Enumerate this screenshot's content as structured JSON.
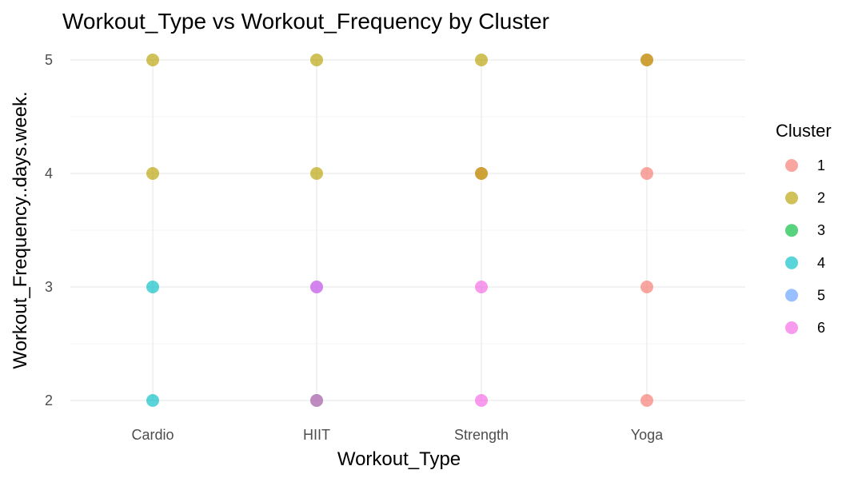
{
  "chart_data": {
    "type": "scatter",
    "title": "Workout_Type vs Workout_Frequency by Cluster",
    "xlabel": "Workout_Type",
    "ylabel": "Workout_Frequency..days.week.",
    "categories": [
      "Cardio",
      "HIIT",
      "Strength",
      "Yoga"
    ],
    "ylim": [
      2,
      5
    ],
    "yticks": [
      "2",
      "3",
      "4",
      "5"
    ],
    "grid": true,
    "legend": {
      "title": "Cluster",
      "position": "right"
    },
    "series": [
      {
        "name": "1",
        "color": "#F8766D",
        "points": [
          {
            "x": "Strength",
            "y": 4
          },
          {
            "x": "Yoga",
            "y": 5
          },
          {
            "x": "Yoga",
            "y": 4
          },
          {
            "x": "Yoga",
            "y": 3
          },
          {
            "x": "Yoga",
            "y": 2
          }
        ]
      },
      {
        "name": "2",
        "color": "#B79F00",
        "points": [
          {
            "x": "Cardio",
            "y": 5
          },
          {
            "x": "Cardio",
            "y": 4
          },
          {
            "x": "HIIT",
            "y": 5
          },
          {
            "x": "HIIT",
            "y": 4
          },
          {
            "x": "Strength",
            "y": 5
          },
          {
            "x": "Strength",
            "y": 4
          },
          {
            "x": "Yoga",
            "y": 5
          }
        ]
      },
      {
        "name": "3",
        "color": "#00BA38",
        "points": [
          {
            "x": "HIIT",
            "y": 2
          }
        ]
      },
      {
        "name": "4",
        "color": "#00BFC4",
        "points": [
          {
            "x": "Cardio",
            "y": 3
          },
          {
            "x": "Cardio",
            "y": 2
          }
        ]
      },
      {
        "name": "5",
        "color": "#619CFF",
        "points": [
          {
            "x": "HIIT",
            "y": 3
          }
        ]
      },
      {
        "name": "6",
        "color": "#F564E3",
        "points": [
          {
            "x": "HIIT",
            "y": 3
          },
          {
            "x": "HIIT",
            "y": 2
          },
          {
            "x": "Strength",
            "y": 3
          },
          {
            "x": "Strength",
            "y": 2
          }
        ]
      }
    ]
  }
}
